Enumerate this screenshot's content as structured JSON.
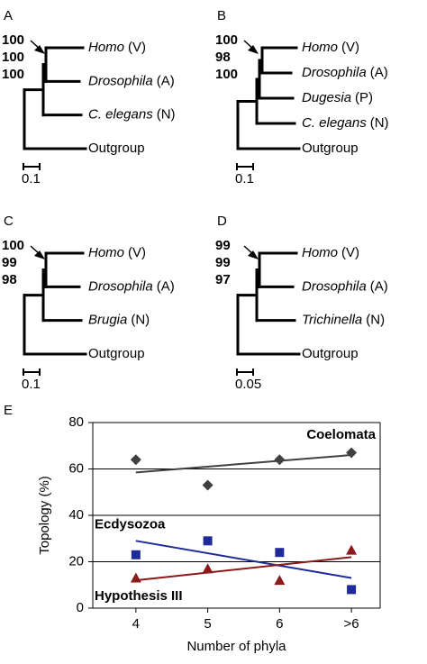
{
  "panels": [
    {
      "label": "A",
      "bootstrap": [
        100,
        100,
        100
      ],
      "scale": 0.1,
      "leaves": [
        {
          "name": "Homo",
          "group": "(V)"
        },
        {
          "name": "Drosophila",
          "group": "(A)"
        },
        {
          "name": "C. elegans",
          "group": "(N)"
        },
        {
          "name": "Outgroup"
        }
      ]
    },
    {
      "label": "B",
      "bootstrap": [
        100,
        98,
        100
      ],
      "scale": 0.1,
      "leaves": [
        {
          "name": "Homo",
          "group": "(V)"
        },
        {
          "name": "Drosophila",
          "group": "(A)"
        },
        {
          "name": "Dugesia",
          "group": "(P)"
        },
        {
          "name": "C. elegans",
          "group": "(N)"
        },
        {
          "name": "Outgroup"
        }
      ]
    },
    {
      "label": "C",
      "bootstrap": [
        100,
        99,
        98
      ],
      "scale": 0.1,
      "leaves": [
        {
          "name": "Homo",
          "group": "(V)"
        },
        {
          "name": "Drosophila",
          "group": "(A)"
        },
        {
          "name": "Brugia",
          "group": "(N)"
        },
        {
          "name": "Outgroup"
        }
      ]
    },
    {
      "label": "D",
      "bootstrap": [
        99,
        99,
        97
      ],
      "scale": 0.05,
      "leaves": [
        {
          "name": "Homo",
          "group": "(V)"
        },
        {
          "name": "Drosophila",
          "group": "(A)"
        },
        {
          "name": "Trichinella",
          "group": "(N)"
        },
        {
          "name": "Outgroup"
        }
      ]
    }
  ],
  "chart_data": {
    "type": "scatter",
    "panel_label": "E",
    "x_label": "Number of phyla",
    "y_label": "Topology (%)",
    "categories": [
      "4",
      "5",
      "6",
      ">6"
    ],
    "ylim": [
      0,
      80
    ],
    "yticks": [
      0,
      20,
      40,
      60,
      80
    ],
    "grid": true,
    "series": [
      {
        "name": "Coelomata",
        "color": "#404040",
        "marker": "diamond",
        "values": [
          64,
          53,
          64,
          67
        ],
        "trend": [
          58.5,
          66
        ]
      },
      {
        "name": "Ecdysozoa",
        "color": "#1f2a9a",
        "marker": "square",
        "values": [
          23,
          29,
          24,
          8
        ],
        "trend": [
          29,
          13
        ]
      },
      {
        "name": "Hypothesis III",
        "color": "#8b1a1a",
        "marker": "triangle",
        "values": [
          13,
          17,
          12,
          25
        ],
        "trend": [
          12,
          22
        ]
      }
    ]
  }
}
